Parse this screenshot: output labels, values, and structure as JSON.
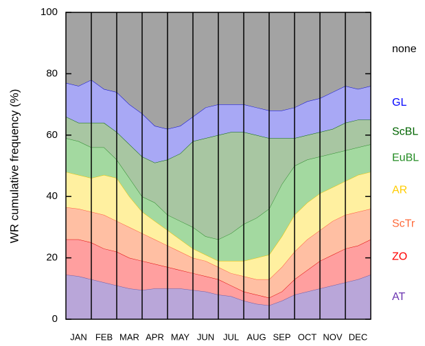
{
  "chart_data": {
    "type": "stacked_area",
    "y_label": "WR cumulative frequency (%)",
    "categories": [
      null,
      "JAN",
      null,
      "FEB",
      null,
      "MAR",
      null,
      "APR",
      null,
      "MAY",
      null,
      "JUN",
      null,
      "JUL",
      null,
      "AUG",
      null,
      "SEP",
      null,
      "OCT",
      null,
      "NOV",
      null,
      "DEC",
      null
    ],
    "ylim": [
      0,
      100
    ],
    "yticks": [
      0,
      20,
      40,
      60,
      80,
      100
    ],
    "series": [
      {
        "name": "AT",
        "color": "#b9a6d9",
        "line_color": "#6a58a0",
        "label_color": "#6a33b0",
        "values": [
          14.5,
          14,
          13,
          12,
          11,
          10,
          9.5,
          10,
          10,
          10,
          9.5,
          9,
          8,
          7.5,
          6,
          5,
          4.5,
          6,
          8,
          9,
          10,
          11,
          12,
          13,
          14.5
        ]
      },
      {
        "name": "ZO",
        "color": "#ff9f9f",
        "line_color": "#e00000",
        "label_color": "#ff0000",
        "values": [
          11.5,
          12,
          12,
          11,
          11,
          10,
          9.5,
          8,
          7,
          6,
          5.5,
          5,
          5,
          3.5,
          3,
          3,
          2.5,
          3,
          5,
          7,
          9,
          10,
          11,
          11,
          11.5
        ]
      },
      {
        "name": "ScTr",
        "color": "#ffbfa3",
        "line_color": "#ff5a3a",
        "label_color": "#ff6a3a",
        "values": [
          10.5,
          10,
          10,
          11,
          10,
          10,
          9,
          8,
          7,
          6,
          5,
          5,
          4,
          4,
          5,
          5,
          6,
          8,
          9,
          10,
          10,
          11,
          11,
          11,
          10
        ]
      },
      {
        "name": "AR",
        "color": "#fff0a0",
        "line_color": "#e6c200",
        "label_color": "#ffcc00",
        "values": [
          11.5,
          11,
          11,
          13,
          14,
          10,
          7,
          6,
          5,
          4,
          3,
          2,
          2,
          4,
          5,
          7,
          8,
          10,
          12,
          12,
          12,
          11,
          11,
          12,
          12
        ]
      },
      {
        "name": "EuBL",
        "color": "#a3d9a0",
        "line_color": "#2a8a2a",
        "label_color": "#228b22",
        "values": [
          11,
          11,
          10,
          9,
          6,
          6,
          5,
          6,
          5,
          6,
          7,
          6,
          7,
          9,
          12,
          13,
          15,
          17,
          16,
          14,
          12,
          11,
          10,
          9,
          9
        ]
      },
      {
        "name": "ScBL",
        "color": "#a8c6a2",
        "line_color": "#006400",
        "label_color": "#006400",
        "values": [
          7,
          6,
          8,
          8,
          9,
          11,
          13,
          13,
          18,
          22,
          28,
          32,
          34,
          33,
          30,
          27,
          23,
          15,
          9,
          8,
          8,
          8,
          9,
          9,
          8
        ]
      },
      {
        "name": "GL",
        "color": "#a8a8f5",
        "line_color": "#0000d0",
        "label_color": "#0000ff",
        "values": [
          11,
          12,
          14,
          11,
          13,
          13,
          14,
          12,
          10,
          9,
          8,
          10,
          10,
          9,
          9,
          9,
          9,
          9,
          10,
          11,
          11,
          12,
          12,
          10,
          11
        ]
      },
      {
        "name": "none",
        "color": "#a3a3a3",
        "line_color": "#a3a3a3",
        "label_color": "#000000",
        "values": [
          23,
          24,
          22,
          25,
          26,
          30,
          33,
          37,
          38,
          37,
          34,
          31,
          30,
          30,
          30,
          31,
          32,
          32,
          31,
          29,
          28,
          26,
          24,
          25,
          24
        ]
      }
    ]
  }
}
